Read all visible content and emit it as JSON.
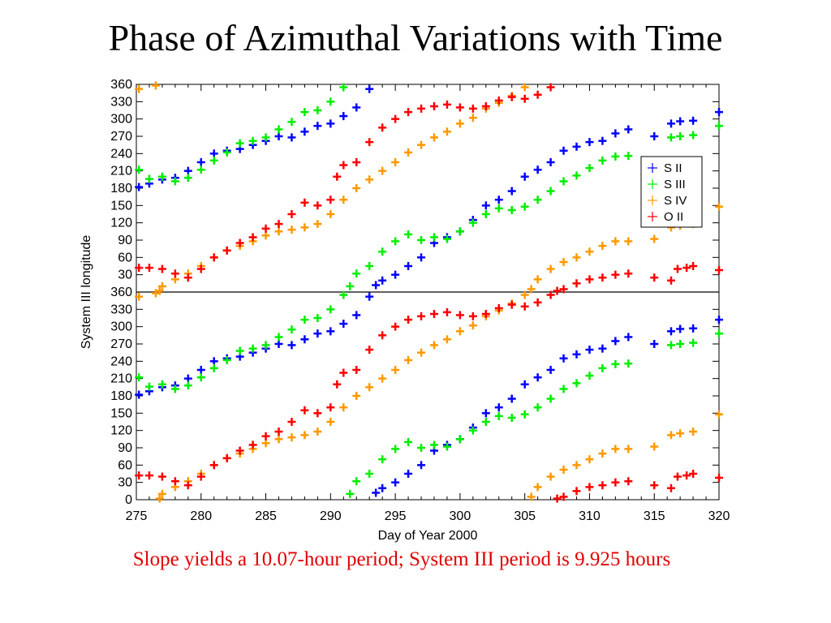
{
  "slide": {
    "title": "Phase of  Azimuthal Variations with Time",
    "caption": "Slope yields a 10.07-hour period; System III period is 9.925 hours"
  },
  "chart_data": {
    "type": "scatter",
    "xlabel": "Day of Year 2000",
    "ylabel": "System III longitude",
    "xlim": [
      275,
      320
    ],
    "x_ticks": [
      275,
      280,
      285,
      290,
      295,
      300,
      305,
      310,
      315,
      320
    ],
    "y_tick_labels_upper": [
      30,
      60,
      90,
      120,
      150,
      180,
      210,
      240,
      270,
      300,
      330,
      360
    ],
    "y_tick_labels_lower": [
      0,
      30,
      60,
      90,
      120,
      150,
      180,
      210,
      240,
      270,
      300,
      330,
      360
    ],
    "y_note": "Two stacked copies of 0-360 longitude axis; data repeated in each panel",
    "legend_position": "right-middle",
    "series": [
      {
        "name": "S II",
        "color": "#0000ff",
        "marker": "+",
        "points": [
          [
            275.2,
            182
          ],
          [
            276,
            188
          ],
          [
            277,
            195
          ],
          [
            278,
            198
          ],
          [
            279,
            210
          ],
          [
            280,
            225
          ],
          [
            281,
            240
          ],
          [
            282,
            245
          ],
          [
            283,
            248
          ],
          [
            284,
            255
          ],
          [
            285,
            262
          ],
          [
            286,
            270
          ],
          [
            287,
            268
          ],
          [
            288,
            278
          ],
          [
            289,
            288
          ],
          [
            290,
            292
          ],
          [
            291,
            305
          ],
          [
            292,
            320
          ],
          [
            293,
            352
          ],
          [
            293.5,
            12
          ],
          [
            294,
            20
          ],
          [
            295,
            30
          ],
          [
            296,
            45
          ],
          [
            297,
            60
          ],
          [
            298,
            85
          ],
          [
            299,
            95
          ],
          [
            300,
            105
          ],
          [
            301,
            125
          ],
          [
            302,
            150
          ],
          [
            303,
            160
          ],
          [
            304,
            175
          ],
          [
            305,
            200
          ],
          [
            306,
            212
          ],
          [
            307,
            225
          ],
          [
            308,
            245
          ],
          [
            309,
            252
          ],
          [
            310,
            260
          ],
          [
            311,
            262
          ],
          [
            312,
            275
          ],
          [
            313,
            282
          ],
          [
            315,
            270
          ],
          [
            316.3,
            292
          ],
          [
            317,
            296
          ],
          [
            318,
            297
          ],
          [
            320,
            312
          ]
        ]
      },
      {
        "name": "S III",
        "color": "#00ee00",
        "marker": "+",
        "points": [
          [
            275.2,
            212
          ],
          [
            276,
            196
          ],
          [
            277,
            200
          ],
          [
            278,
            192
          ],
          [
            279,
            198
          ],
          [
            280,
            212
          ],
          [
            281,
            228
          ],
          [
            282,
            242
          ],
          [
            283,
            258
          ],
          [
            284,
            262
          ],
          [
            285,
            268
          ],
          [
            286,
            282
          ],
          [
            287,
            295
          ],
          [
            288,
            312
          ],
          [
            289,
            315
          ],
          [
            290,
            330
          ],
          [
            291,
            355
          ],
          [
            291.5,
            10
          ],
          [
            292,
            32
          ],
          [
            293,
            45
          ],
          [
            294,
            70
          ],
          [
            295,
            88
          ],
          [
            296,
            100
          ],
          [
            297,
            90
          ],
          [
            298,
            95
          ],
          [
            299,
            92
          ],
          [
            300,
            105
          ],
          [
            301,
            120
          ],
          [
            302,
            135
          ],
          [
            303,
            145
          ],
          [
            304,
            142
          ],
          [
            305,
            148
          ],
          [
            306,
            160
          ],
          [
            307,
            175
          ],
          [
            308,
            192
          ],
          [
            309,
            202
          ],
          [
            310,
            215
          ],
          [
            311,
            228
          ],
          [
            312,
            235
          ],
          [
            313,
            236
          ],
          [
            316.3,
            268
          ],
          [
            317,
            270
          ],
          [
            318,
            272
          ],
          [
            320,
            288
          ]
        ]
      },
      {
        "name": "S IV",
        "color": "#ff9900",
        "marker": "+",
        "points": [
          [
            275.2,
            352
          ],
          [
            276.5,
            358
          ],
          [
            276.8,
            2
          ],
          [
            277,
            10
          ],
          [
            278,
            22
          ],
          [
            279,
            32
          ],
          [
            280,
            45
          ],
          [
            281,
            60
          ],
          [
            282,
            72
          ],
          [
            283,
            80
          ],
          [
            284,
            88
          ],
          [
            285,
            98
          ],
          [
            286,
            105
          ],
          [
            287,
            108
          ],
          [
            288,
            112
          ],
          [
            289,
            118
          ],
          [
            290,
            135
          ],
          [
            291,
            160
          ],
          [
            292,
            180
          ],
          [
            293,
            195
          ],
          [
            294,
            210
          ],
          [
            295,
            225
          ],
          [
            296,
            242
          ],
          [
            297,
            255
          ],
          [
            298,
            268
          ],
          [
            299,
            278
          ],
          [
            300,
            292
          ],
          [
            301,
            302
          ],
          [
            302,
            318
          ],
          [
            303,
            328
          ],
          [
            304,
            340
          ],
          [
            305,
            355
          ],
          [
            305.5,
            5
          ],
          [
            306,
            22
          ],
          [
            307,
            40
          ],
          [
            308,
            52
          ],
          [
            309,
            60
          ],
          [
            310,
            70
          ],
          [
            311,
            80
          ],
          [
            312,
            88
          ],
          [
            313,
            88
          ],
          [
            315,
            92
          ],
          [
            316.3,
            112
          ],
          [
            317,
            115
          ],
          [
            318,
            118
          ],
          [
            320,
            148
          ]
        ]
      },
      {
        "name": "O II",
        "color": "#ff0000",
        "marker": "+",
        "points": [
          [
            275.2,
            42
          ],
          [
            276,
            42
          ],
          [
            277,
            40
          ],
          [
            278,
            32
          ],
          [
            279,
            25
          ],
          [
            280,
            40
          ],
          [
            281,
            60
          ],
          [
            282,
            72
          ],
          [
            283,
            85
          ],
          [
            284,
            95
          ],
          [
            285,
            110
          ],
          [
            286,
            118
          ],
          [
            287,
            135
          ],
          [
            288,
            155
          ],
          [
            289,
            150
          ],
          [
            290,
            160
          ],
          [
            290.5,
            200
          ],
          [
            291,
            220
          ],
          [
            292,
            225
          ],
          [
            293,
            260
          ],
          [
            294,
            285
          ],
          [
            295,
            300
          ],
          [
            296,
            312
          ],
          [
            297,
            318
          ],
          [
            298,
            322
          ],
          [
            299,
            325
          ],
          [
            300,
            320
          ],
          [
            301,
            318
          ],
          [
            302,
            322
          ],
          [
            303,
            332
          ],
          [
            304,
            338
          ],
          [
            305,
            335
          ],
          [
            306,
            342
          ],
          [
            307,
            355
          ],
          [
            307.5,
            2
          ],
          [
            308,
            5
          ],
          [
            309,
            15
          ],
          [
            310,
            22
          ],
          [
            311,
            25
          ],
          [
            312,
            30
          ],
          [
            313,
            32
          ],
          [
            315,
            25
          ],
          [
            316.3,
            20
          ],
          [
            316.8,
            40
          ],
          [
            317.5,
            42
          ],
          [
            318,
            45
          ],
          [
            320,
            38
          ]
        ]
      }
    ]
  }
}
